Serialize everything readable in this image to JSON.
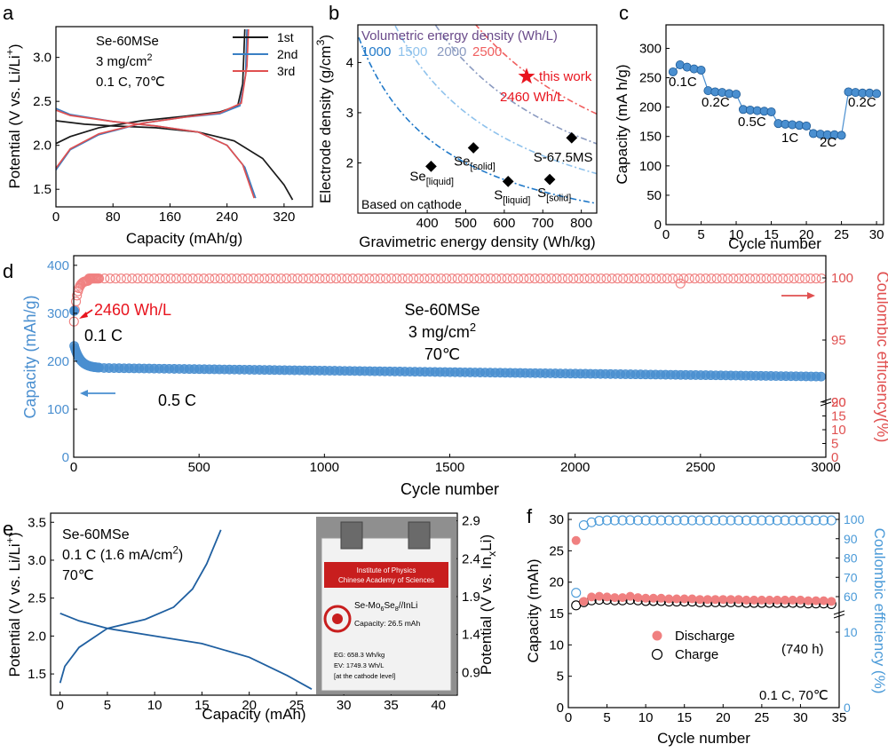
{
  "colors": {
    "black": "#1a1a1a",
    "blue_cycle": "#3a7fc4",
    "red_cycle": "#e05050",
    "cap_blue": "#4a8fd0",
    "ce_red": "#f08080",
    "dark_blue": "#1f5fa0",
    "star": "#e8141e",
    "ce_blue_f": "#4a9ad8",
    "purple": "#6a4a8a",
    "c1000": "#1f78c8",
    "c1500": "#8fc2ec",
    "c2000": "#8a9ac0",
    "c2500": "#f06060"
  },
  "panels": {
    "a": {
      "label": "a"
    },
    "b": {
      "label": "b"
    },
    "c": {
      "label": "c"
    },
    "d": {
      "label": "d"
    },
    "e": {
      "label": "e"
    },
    "f": {
      "label": "f"
    }
  },
  "chart_data": [
    {
      "id": "a",
      "type": "line",
      "xlabel": "Capacity (mAh/g)",
      "ylabel": "Potential (V vs. Li/Li+)",
      "xlim": [
        0,
        360
      ],
      "ylim": [
        1.3,
        3.35
      ],
      "xticks": [
        "0",
        "80",
        "160",
        "240",
        "320"
      ],
      "yticks": [
        "1.5",
        "2.0",
        "2.5",
        "3.0"
      ],
      "annotation": [
        "Se-60MSe",
        "3 mg/cm2",
        "0.1 C, 70℃"
      ],
      "legend": [
        "1st",
        "2nd",
        "3rd"
      ],
      "series": [
        {
          "name": "1st",
          "discharge": [
            [
              0,
              2.28
            ],
            [
              40,
              2.24
            ],
            [
              80,
              2.22
            ],
            [
              140,
              2.2
            ],
            [
              200,
              2.15
            ],
            [
              250,
              2.05
            ],
            [
              290,
              1.85
            ],
            [
              320,
              1.55
            ],
            [
              332,
              1.38
            ]
          ],
          "charge": [
            [
              0,
              2.02
            ],
            [
              20,
              2.1
            ],
            [
              60,
              2.2
            ],
            [
              120,
              2.28
            ],
            [
              180,
              2.33
            ],
            [
              230,
              2.38
            ],
            [
              255,
              2.45
            ],
            [
              262,
              2.7
            ],
            [
              265,
              3.32
            ]
          ]
        },
        {
          "name": "2nd",
          "discharge": [
            [
              0,
              2.42
            ],
            [
              20,
              2.35
            ],
            [
              80,
              2.27
            ],
            [
              140,
              2.22
            ],
            [
              200,
              2.15
            ],
            [
              240,
              2.0
            ],
            [
              265,
              1.75
            ],
            [
              280,
              1.4
            ]
          ],
          "charge": [
            [
              0,
              1.72
            ],
            [
              20,
              1.95
            ],
            [
              60,
              2.12
            ],
            [
              120,
              2.25
            ],
            [
              180,
              2.32
            ],
            [
              230,
              2.36
            ],
            [
              258,
              2.45
            ],
            [
              266,
              2.8
            ],
            [
              268,
              3.32
            ]
          ]
        },
        {
          "name": "3rd",
          "discharge": [
            [
              0,
              2.4
            ],
            [
              20,
              2.34
            ],
            [
              80,
              2.27
            ],
            [
              140,
              2.22
            ],
            [
              200,
              2.15
            ],
            [
              240,
              2.0
            ],
            [
              262,
              1.78
            ],
            [
              278,
              1.4
            ]
          ],
          "charge": [
            [
              0,
              1.74
            ],
            [
              20,
              1.96
            ],
            [
              60,
              2.13
            ],
            [
              120,
              2.25
            ],
            [
              180,
              2.32
            ],
            [
              230,
              2.37
            ],
            [
              260,
              2.48
            ],
            [
              268,
              2.9
            ],
            [
              270,
              3.32
            ]
          ]
        }
      ]
    },
    {
      "id": "b",
      "type": "scatter",
      "xlabel": "Gravimetric energy density (Wh/kg)",
      "ylabel": "Electrode density (g/cm3)",
      "xlim": [
        220,
        840
      ],
      "ylim": [
        1.0,
        4.75
      ],
      "xticks": [
        "400",
        "500",
        "600",
        "700",
        "800"
      ],
      "yticks": [
        "2",
        "3",
        "4"
      ],
      "legend_title": "Volumetric energy density (Wh/L)",
      "iso_labels": [
        "1000",
        "1500",
        "2000",
        "2500"
      ],
      "iso_values": [
        1000,
        1500,
        2000,
        2500
      ],
      "footnote": "Based on cathode",
      "points": [
        {
          "label": "Se",
          "sub": "[liquid]",
          "x": 410,
          "y": 1.93
        },
        {
          "label": "Se",
          "sub": "[solid]",
          "x": 520,
          "y": 2.3
        },
        {
          "label": "S",
          "sub": "[liquid]",
          "x": 610,
          "y": 1.63
        },
        {
          "label": "S",
          "sub": "[solid]",
          "x": 718,
          "y": 1.67
        },
        {
          "label": "S-67.5MS",
          "sub": "",
          "x": 775,
          "y": 2.5
        }
      ],
      "this_work": {
        "label": "this work",
        "x": 658,
        "y": 3.72,
        "value_label": "2460 Wh/L"
      }
    },
    {
      "id": "c",
      "type": "scatter",
      "xlabel": "Cycle number",
      "ylabel": "Capacity (mA h/g)",
      "xlim": [
        0,
        31
      ],
      "ylim": [
        0,
        340
      ],
      "xticks": [
        "0",
        "5",
        "10",
        "15",
        "20",
        "25",
        "30"
      ],
      "yticks": [
        "0",
        "50",
        "100",
        "150",
        "200",
        "250",
        "300"
      ],
      "rate_labels": [
        "0.1C",
        "0.2C",
        "0.5C",
        "1C",
        "2C",
        "0.2C"
      ],
      "values": [
        260,
        272,
        268,
        265,
        263,
        228,
        226,
        225,
        223,
        222,
        196,
        195,
        194,
        193,
        192,
        172,
        171,
        170,
        169,
        168,
        155,
        154,
        153,
        153,
        152,
        226,
        225,
        224,
        224,
        223
      ]
    },
    {
      "id": "d",
      "type": "scatter",
      "xlabel": "Cycle number",
      "ylabel": "Capacity (mAh/g)",
      "ylabel2": "Coulombic efficiency(%)",
      "xlim": [
        0,
        3000
      ],
      "ylim": [
        0,
        420
      ],
      "xticks": [
        "0",
        "500",
        "1000",
        "1500",
        "2000",
        "2500",
        "3000"
      ],
      "yticks": [
        "0",
        "100",
        "200",
        "300",
        "400"
      ],
      "y2ticks": [
        "0",
        "5",
        "10",
        "15",
        "20",
        "90",
        "95",
        "100"
      ],
      "annotation": [
        "Se-60MSe",
        "3 mg/cm2",
        "70℃"
      ],
      "label_01C": "0.1 C",
      "label_05C": "0.5 C",
      "label_energy": "2460 Wh/L",
      "capacity_first": 305,
      "capacity": [
        [
          2,
          232
        ],
        [
          10,
          218
        ],
        [
          30,
          200
        ],
        [
          60,
          190
        ],
        [
          100,
          186
        ],
        [
          200,
          184
        ],
        [
          500,
          185
        ],
        [
          1000,
          180
        ],
        [
          1500,
          177
        ],
        [
          2000,
          173
        ],
        [
          2500,
          170
        ],
        [
          3000,
          168
        ]
      ],
      "ce": [
        [
          1,
          96.2
        ],
        [
          5,
          98.8
        ],
        [
          20,
          99.5
        ],
        [
          60,
          99.8
        ],
        [
          300,
          99.95
        ],
        [
          2000,
          99.95
        ],
        [
          3000,
          99.95
        ]
      ]
    },
    {
      "id": "e",
      "type": "line",
      "xlabel": "Capacity (mAh)",
      "ylabel": "Potential (V vs. Li/Li+)",
      "ylabel2": "Potential (V vs. InxLi)",
      "xlim": [
        -1,
        42
      ],
      "ylim": [
        1.22,
        3.62
      ],
      "xticks": [
        "0",
        "5",
        "10",
        "15",
        "20",
        "25",
        "30",
        "35",
        "40"
      ],
      "yticks": [
        "1.5",
        "2.0",
        "2.5",
        "3.0",
        "3.5"
      ],
      "y2ticks": [
        "0.9",
        "1.4",
        "1.9",
        "2.4",
        "2.9"
      ],
      "annotation": [
        "Se-60MSe",
        "0.1 C (1.6 mA/cm2)",
        "70℃"
      ],
      "discharge": [
        [
          0,
          2.3
        ],
        [
          2,
          2.2
        ],
        [
          5,
          2.1
        ],
        [
          10,
          2.0
        ],
        [
          15,
          1.9
        ],
        [
          20,
          1.72
        ],
        [
          24,
          1.48
        ],
        [
          26.6,
          1.3
        ]
      ],
      "charge": [
        [
          0,
          1.38
        ],
        [
          0.5,
          1.6
        ],
        [
          2,
          1.85
        ],
        [
          5,
          2.1
        ],
        [
          9,
          2.22
        ],
        [
          12,
          2.38
        ],
        [
          14,
          2.62
        ],
        [
          15.5,
          2.95
        ],
        [
          17,
          3.4
        ]
      ],
      "photo": {
        "header_line1": "Institute of Physics",
        "header_line2": "Chinese Academy of Sciences",
        "cell_name": "Se-Mo6Se8//InLi",
        "capacity": "Capacity: 26.5 mAh",
        "eg": "EG: 658.3 Wh/kg",
        "ev": "EV: 1749.3 Wh/L",
        "level": "[at the cathode level]"
      }
    },
    {
      "id": "f",
      "type": "scatter",
      "xlabel": "Cycle number",
      "ylabel": "Capacity (mAh)",
      "ylabel2": "Coulombic efficiency (%)",
      "xlim": [
        0,
        35
      ],
      "ylim": [
        0,
        31
      ],
      "xticks": [
        "0",
        "5",
        "10",
        "15",
        "20",
        "25",
        "30",
        "35"
      ],
      "yticks": [
        "0",
        "5",
        "10",
        "15",
        "20",
        "25",
        "30"
      ],
      "y2ticks": [
        "0",
        "10",
        "60",
        "70",
        "80",
        "90",
        "100"
      ],
      "legend": [
        "Discharge",
        "Charge"
      ],
      "annotation_time": "(740 h)",
      "annotation_cond": "0.1 C, 70℃",
      "discharge": [
        26.5,
        16.8,
        17.5,
        17.6,
        17.5,
        17.4,
        17.4,
        17.6,
        17.4,
        17.3,
        17.3,
        17.3,
        17.2,
        17.2,
        17.2,
        17.2,
        17.1,
        17.1,
        17.1,
        17.1,
        17.1,
        17.1,
        17.0,
        17.0,
        17.0,
        17.0,
        17.0,
        17.0,
        17.0,
        17.0,
        16.9,
        16.9,
        16.9,
        16.8
      ],
      "charge": [
        16.3,
        16.8,
        17.1,
        17.2,
        17.2,
        17.1,
        17.1,
        17.2,
        17.1,
        17.0,
        17.0,
        17.0,
        16.9,
        16.9,
        16.9,
        16.9,
        16.8,
        16.8,
        16.8,
        16.8,
        16.8,
        16.8,
        16.7,
        16.7,
        16.7,
        16.7,
        16.7,
        16.7,
        16.7,
        16.7,
        16.6,
        16.6,
        16.6,
        16.5
      ],
      "ce": [
        62,
        97,
        98.5,
        99.3,
        99.5,
        99.5,
        99.5,
        99.6,
        99.5,
        99.5,
        99.5,
        99.5,
        99.5,
        99.5,
        99.5,
        99.5,
        99.5,
        99.5,
        99.5,
        99.5,
        99.5,
        99.5,
        99.5,
        99.5,
        99.5,
        99.5,
        99.5,
        99.5,
        99.5,
        99.5,
        99.5,
        99.5,
        99.5,
        99.5
      ]
    }
  ]
}
